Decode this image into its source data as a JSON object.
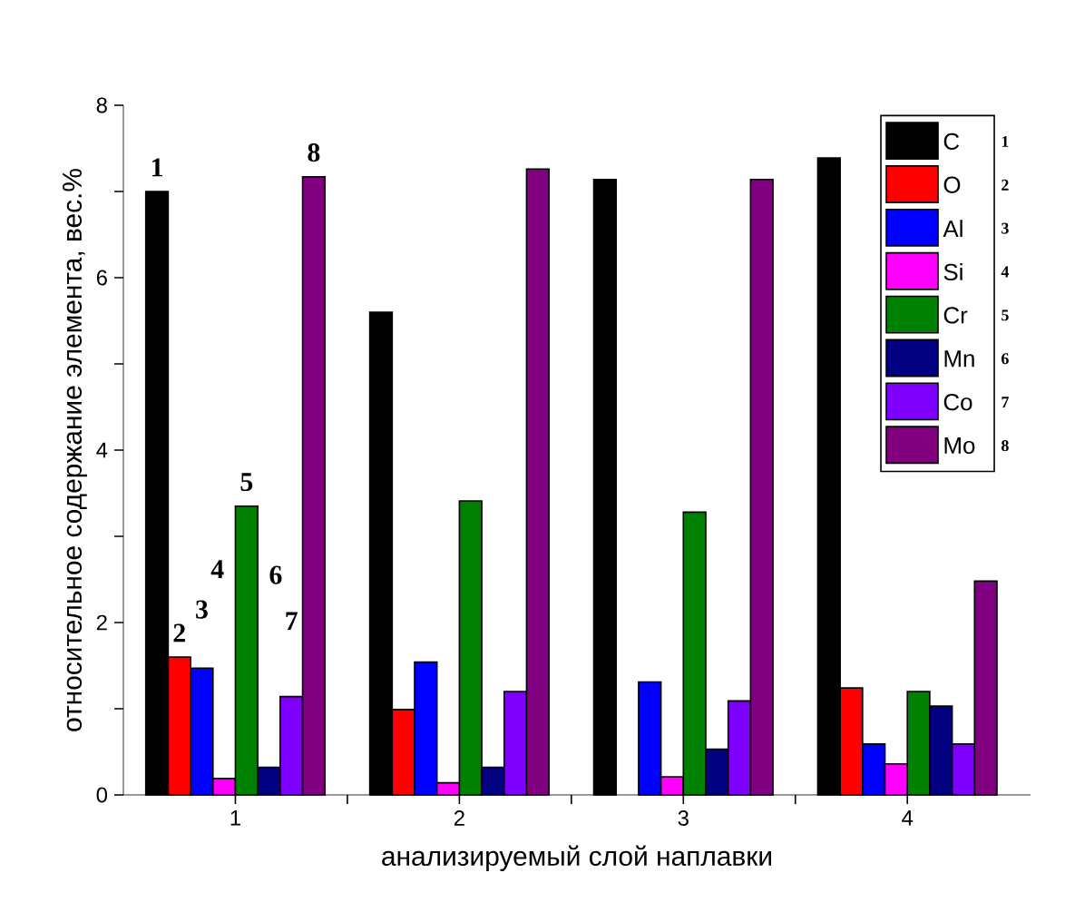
{
  "chart_data": {
    "type": "bar",
    "xlabel": "анализируемый слой наплавки",
    "ylabel": "относительное содержание элемента, вес.%",
    "categories": [
      "1",
      "2",
      "3",
      "4"
    ],
    "series": [
      {
        "name": "C",
        "color": "#000000",
        "values": [
          7.0,
          5.6,
          7.14,
          7.39
        ]
      },
      {
        "name": "O",
        "color": "#ff0000",
        "values": [
          1.6,
          0.99,
          null,
          1.24
        ]
      },
      {
        "name": "Al",
        "color": "#0000ff",
        "values": [
          1.47,
          1.54,
          1.31,
          0.59
        ]
      },
      {
        "name": "Si",
        "color": "#ff00ff",
        "values": [
          0.19,
          0.14,
          0.21,
          0.36
        ]
      },
      {
        "name": "Cr",
        "color": "#008000",
        "values": [
          3.35,
          3.41,
          3.28,
          1.2
        ]
      },
      {
        "name": "Mn",
        "color": "#000080",
        "values": [
          0.32,
          0.32,
          0.53,
          1.03
        ]
      },
      {
        "name": "Co",
        "color": "#8000ff",
        "values": [
          1.14,
          1.2,
          1.09,
          0.59
        ]
      },
      {
        "name": "Mo",
        "color": "#800080",
        "values": [
          7.17,
          7.26,
          7.14,
          2.48
        ]
      }
    ],
    "ylim": [
      0,
      8
    ],
    "yticks": [
      0,
      {
        "value": 1,
        "label": null
      },
      2,
      {
        "value": 3,
        "label": null
      },
      4,
      {
        "value": 5,
        "label": null
      },
      6,
      {
        "value": 7,
        "label": null
      },
      8
    ],
    "legend": "top right",
    "annotations": [
      "1",
      "2",
      "3",
      "4",
      "5",
      "6",
      "7",
      "8",
      "1",
      "2",
      "3",
      "4",
      "5",
      "6",
      "7",
      "8"
    ]
  }
}
